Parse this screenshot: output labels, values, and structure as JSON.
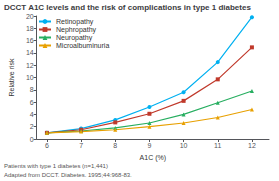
{
  "chart_data": {
    "type": "line",
    "title": "DCCT A1C levels and the risk of complications in type 1 diabetes",
    "xlabel": "A1C (%)",
    "ylabel": "Relative risk",
    "x": [
      6,
      7,
      8,
      9,
      10,
      11,
      12
    ],
    "series": [
      {
        "name": "Retinopathy",
        "color": "#00B0F0",
        "marker": "circle",
        "values": [
          1.0,
          1.7,
          3.1,
          5.2,
          7.6,
          12.5,
          19.8
        ]
      },
      {
        "name": "Nephropathy",
        "color": "#C0392B",
        "marker": "square",
        "values": [
          1.0,
          1.5,
          2.7,
          4.1,
          6.2,
          9.7,
          14.9
        ]
      },
      {
        "name": "Neuropathy",
        "color": "#27AE60",
        "marker": "triangle",
        "values": [
          1.0,
          1.3,
          1.8,
          2.6,
          4.0,
          5.9,
          7.8
        ]
      },
      {
        "name": "Microalbuminuria",
        "color": "#E8A000",
        "marker": "triangle",
        "values": [
          1.0,
          1.2,
          1.5,
          2.0,
          2.6,
          3.5,
          4.8
        ]
      }
    ],
    "xlim": [
      5.7,
      12.5
    ],
    "xticks": [
      6,
      7,
      8,
      9,
      10,
      11,
      12
    ],
    "ylim": [
      0,
      20
    ],
    "yticks": [
      0,
      2,
      4,
      6,
      8,
      10,
      12,
      14,
      16,
      18,
      20
    ],
    "grid": false,
    "legend": "upper left",
    "annotations": [
      "Patients with type 1 diabetes (n=1,441)",
      "Adapted from DCCT. Diabetes. 1995;44:968-83."
    ]
  }
}
